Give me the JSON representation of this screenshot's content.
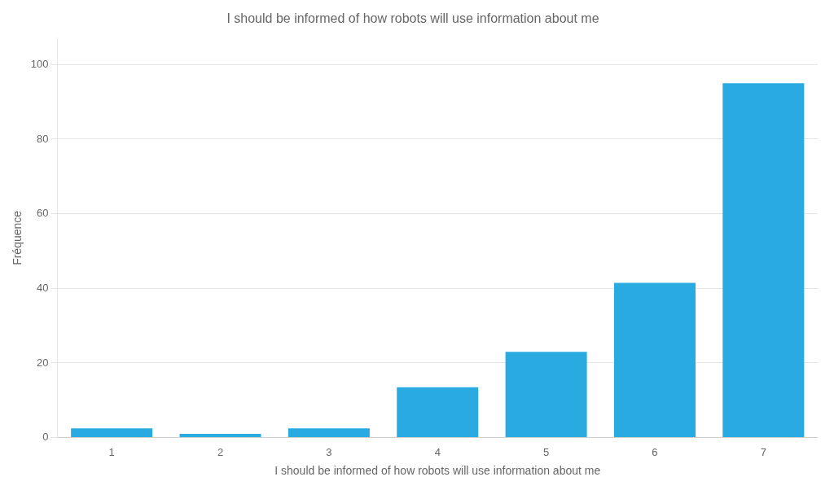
{
  "chart_data": {
    "type": "bar",
    "title": "I should be informed of how robots will use information about me",
    "xlabel": "I should be informed of how robots will use information about me",
    "ylabel": "Fréquence",
    "categories": [
      1,
      2,
      3,
      4,
      5,
      6,
      7
    ],
    "values": [
      2.5,
      1.0,
      2.5,
      13.5,
      23.0,
      41.5,
      95.0
    ],
    "color": "#29ABE2",
    "ylim": [
      0,
      107
    ],
    "yticks": [
      0,
      20,
      40,
      60,
      80,
      100
    ],
    "grid": true
  }
}
